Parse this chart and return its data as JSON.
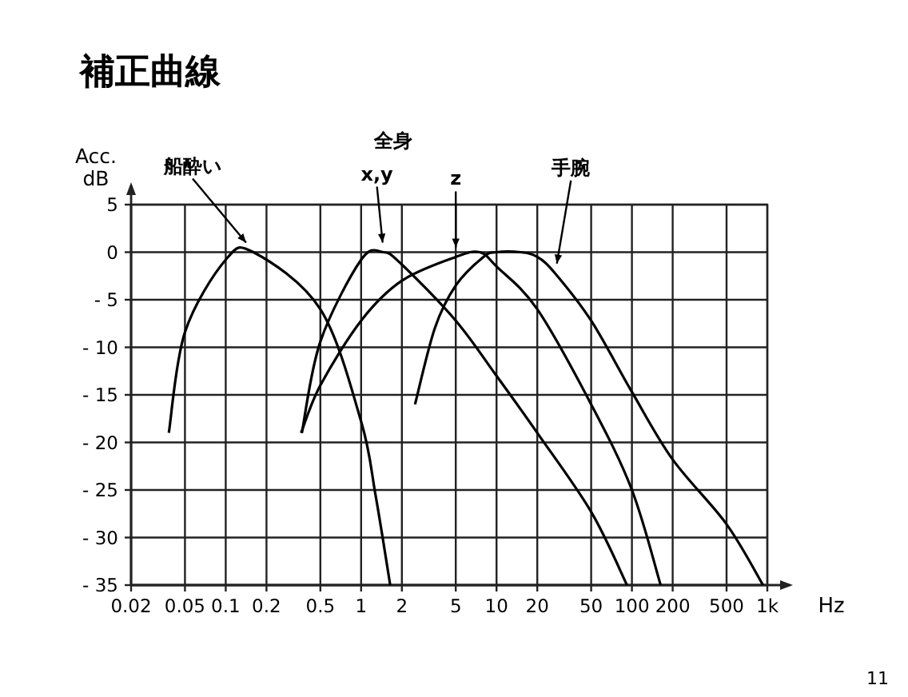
{
  "chart_data": {
    "type": "line",
    "title": "補正曲線",
    "xlabel": "Hz",
    "ylabel": "Acc. dB",
    "log": "x",
    "grid": true,
    "marker": "none",
    "line_style": "solid",
    "xlim": [
      0.02,
      1000
    ],
    "xticks": [
      0.02,
      0.05,
      0.1,
      0.2,
      0.5,
      1,
      2,
      5,
      10,
      20,
      50,
      100,
      200,
      500,
      {
        "value": 1000,
        "label": "1k"
      }
    ],
    "ylim": [
      -35,
      5
    ],
    "yticks": [
      5,
      0,
      {
        "value": -5,
        "label": "- 5"
      },
      {
        "value": -10,
        "label": "- 10"
      },
      {
        "value": -15,
        "label": "- 15"
      },
      {
        "value": -20,
        "label": "- 20"
      },
      {
        "value": -25,
        "label": "- 25"
      },
      {
        "value": -30,
        "label": "- 30"
      },
      {
        "value": -35,
        "label": "- 35"
      }
    ],
    "annotations": [
      "全身",
      "11"
    ],
    "series": [
      {
        "name": "船酔い",
        "color": "#000000",
        "x": [
          0.038,
          0.05,
          0.1,
          0.16,
          0.5,
          1,
          1.28,
          1.64
        ],
        "values": [
          -19,
          -8.4,
          -0.8,
          0,
          -6,
          -17.8,
          -25.6,
          -35
        ]
      },
      {
        "name": "x,y",
        "color": "#000000",
        "x": [
          0.365,
          0.5,
          1,
          1.46,
          2,
          5,
          10,
          20,
          50,
          92
        ],
        "values": [
          -19,
          -9.4,
          -0.8,
          0,
          -1.3,
          -7.2,
          -13,
          -19,
          -27.3,
          -35
        ]
      },
      {
        "name": "z",
        "color": "#000000",
        "x": [
          0.36,
          0.5,
          1,
          2,
          5,
          7.5,
          10,
          20,
          50,
          100,
          163
        ],
        "values": [
          -19,
          -14,
          -7.2,
          -3,
          -0.5,
          0,
          -1.5,
          -6,
          -16,
          -25,
          -35
        ]
      },
      {
        "name": "手腕",
        "color": "#000000",
        "x": [
          2.5,
          3.5,
          5,
          8,
          10,
          15,
          20,
          27,
          50,
          100,
          200,
          500,
          930
        ],
        "values": [
          -16,
          -8,
          -3.5,
          -0.5,
          0,
          0,
          -0.5,
          -2.2,
          -7.2,
          -14.7,
          -21.8,
          -28.6,
          -35
        ]
      }
    ]
  }
}
